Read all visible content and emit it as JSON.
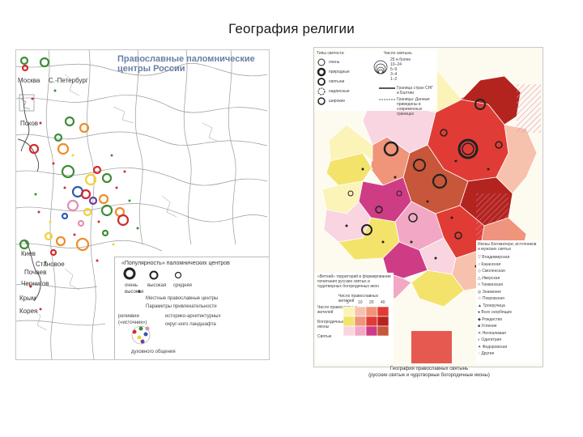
{
  "page_title": "География религии",
  "left_map": {
    "title_line1": "Православные паломнические",
    "title_line2": "центры России",
    "cities": {
      "moscow": "Москва",
      "spb": "С.-Петербург",
      "pskov": "Псков",
      "kiev": "Киев",
      "chernigov": "Чернигов",
      "pochaev": "Почаев",
      "kryim": "Крым",
      "korea": "Корея",
      "stanovoe": "Становое"
    },
    "legend": {
      "header": "«Популярность» паломнических центров",
      "levels": [
        "очень",
        "высокая",
        "средняя"
      ],
      "level_extra": "высокая",
      "local": "Местные православные центры",
      "params": "Параметры привлекательности",
      "relics": "реликвии",
      "sources": "(«источник»)",
      "historic": "историко-архитектурных",
      "landscape": "округ-ного ландшафта",
      "spiritual": "духовного общения"
    },
    "colors": {
      "green": "#3e8d36",
      "red": "#d42b2b",
      "orange": "#ef8c2b",
      "yellow": "#f2d237",
      "blue": "#2f58b4",
      "pink": "#e28fb4",
      "purple": "#6b3fa0"
    }
  },
  "right_map": {
    "legend_top": {
      "types_header": "Типы святости",
      "types": [
        "очень",
        "природные",
        "святыни",
        "надписные",
        "широкие"
      ],
      "count_header": "Число святынь",
      "counts": [
        "25 и более",
        "10–24",
        "5–9",
        "3–4",
        "1–2"
      ],
      "border_label": "Граница стран СНГ и Балтии",
      "bound_label": "Границы: Данные приведены в современных границах"
    },
    "legend_right_header": "Иконы Богоматери, источников и мужских святых",
    "legend_right_items": [
      "Владимирская",
      "Казанская",
      "Смоленская",
      "Иверская",
      "Тихвинская",
      "Знамение",
      "Покровская",
      "Троеручица",
      "Всех скорбящих",
      "Рождество",
      "Успение",
      "Неопалимая",
      "Одигитрия",
      "Федоровская",
      "Другие"
    ],
    "legend_bottom": {
      "center_note": "«Ветхий» территорий в формировании почитания русских святых и чудотворных богородичных икон",
      "matrix_title": "Число православных жителей",
      "row_labels": [
        "Число православных",
        "жителей",
        "Богородичные",
        "иконы",
        "Святые"
      ],
      "col_labels": [
        "5",
        "10",
        "20",
        "40"
      ]
    },
    "caption_line1": "География православных святынь",
    "caption_line2": "(русские святые и чудотворные богородичные иконы)",
    "colors": {
      "dark_red": "#b3241f",
      "red": "#e03c35",
      "orange_brown": "#c7563a",
      "salmon": "#f0947a",
      "light_salmon": "#f7c2ad",
      "yellow": "#f3e36a",
      "pale_yellow": "#fbf3b8",
      "magenta": "#cf3c86",
      "pink": "#f2a8c4",
      "light_pink": "#f9d4e1"
    }
  }
}
